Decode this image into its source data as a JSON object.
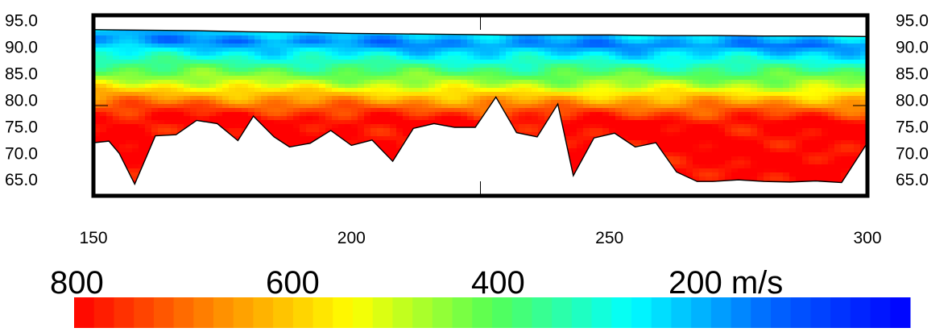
{
  "chart_data": {
    "type": "heatmap",
    "title": "",
    "xlabel": "",
    "ylabel": "",
    "xlim": [
      150,
      300
    ],
    "ylim": [
      62,
      96
    ],
    "x_ticks": [
      150,
      200,
      250,
      300
    ],
    "y_ticks": [
      "95.0",
      "90.0",
      "85.0",
      "80.0",
      "75.0",
      "70.0",
      "65.0"
    ],
    "y_tick_values": [
      95,
      90,
      85,
      80,
      75,
      70,
      65
    ],
    "grid": "center crosshair ticks",
    "surface_profile": {
      "x": [
        150,
        160,
        170,
        180,
        190,
        200,
        210,
        220,
        230,
        240,
        250,
        260,
        270,
        280,
        290,
        300
      ],
      "elevation": [
        93.3,
        93.2,
        93.1,
        92.9,
        92.8,
        92.6,
        92.5,
        92.4,
        92.3,
        92.3,
        92.3,
        92.2,
        92.2,
        92.1,
        92.1,
        92.0
      ]
    },
    "bottom_profile": {
      "x": [
        150,
        153,
        155,
        158,
        162,
        166,
        170,
        174,
        178,
        181,
        185,
        188,
        192,
        196,
        200,
        204,
        208,
        212,
        216,
        220,
        224,
        228,
        232,
        236,
        240,
        243,
        247,
        251,
        255,
        259,
        263,
        267,
        270,
        275,
        280,
        285,
        290,
        295,
        300
      ],
      "elevation": [
        72,
        72.3,
        70,
        64.2,
        73.3,
        73.5,
        76.2,
        75.6,
        72.4,
        77,
        73.1,
        71.2,
        71.9,
        74.3,
        71.5,
        72.5,
        68.5,
        74.7,
        75.6,
        74.9,
        74.9,
        80.6,
        73.9,
        73.1,
        79.3,
        65.8,
        72.9,
        73.8,
        71.2,
        72,
        66.5,
        64.7,
        64.7,
        65,
        64.7,
        64.6,
        64.8,
        64.5,
        72
      ]
    },
    "velocity_layers": [
      {
        "depth_below_surface": 0.0,
        "velocity": 300
      },
      {
        "depth_below_surface": 1.8,
        "velocity": 240
      },
      {
        "depth_below_surface": 3.5,
        "velocity": 310
      },
      {
        "depth_below_surface": 5.5,
        "velocity": 380
      },
      {
        "depth_below_surface": 7.5,
        "velocity": 450
      },
      {
        "depth_below_surface": 9.5,
        "velocity": 520
      },
      {
        "depth_below_surface": 11.5,
        "velocity": 620
      },
      {
        "depth_below_surface": 14.0,
        "velocity": 720
      },
      {
        "depth_below_surface": 16.5,
        "velocity": 800
      },
      {
        "depth_below_surface": 30.0,
        "velocity": 800
      }
    ],
    "colorbar": {
      "labels": [
        "800",
        "600",
        "400",
        "200 m/s"
      ],
      "label_values": [
        800,
        600,
        400,
        200
      ],
      "range": [
        800,
        100
      ],
      "stops": [
        "#ff0000",
        "#ff8800",
        "#ffff00",
        "#55ff55",
        "#00ffff",
        "#0066ff",
        "#0000ff"
      ],
      "segments": 42
    }
  }
}
